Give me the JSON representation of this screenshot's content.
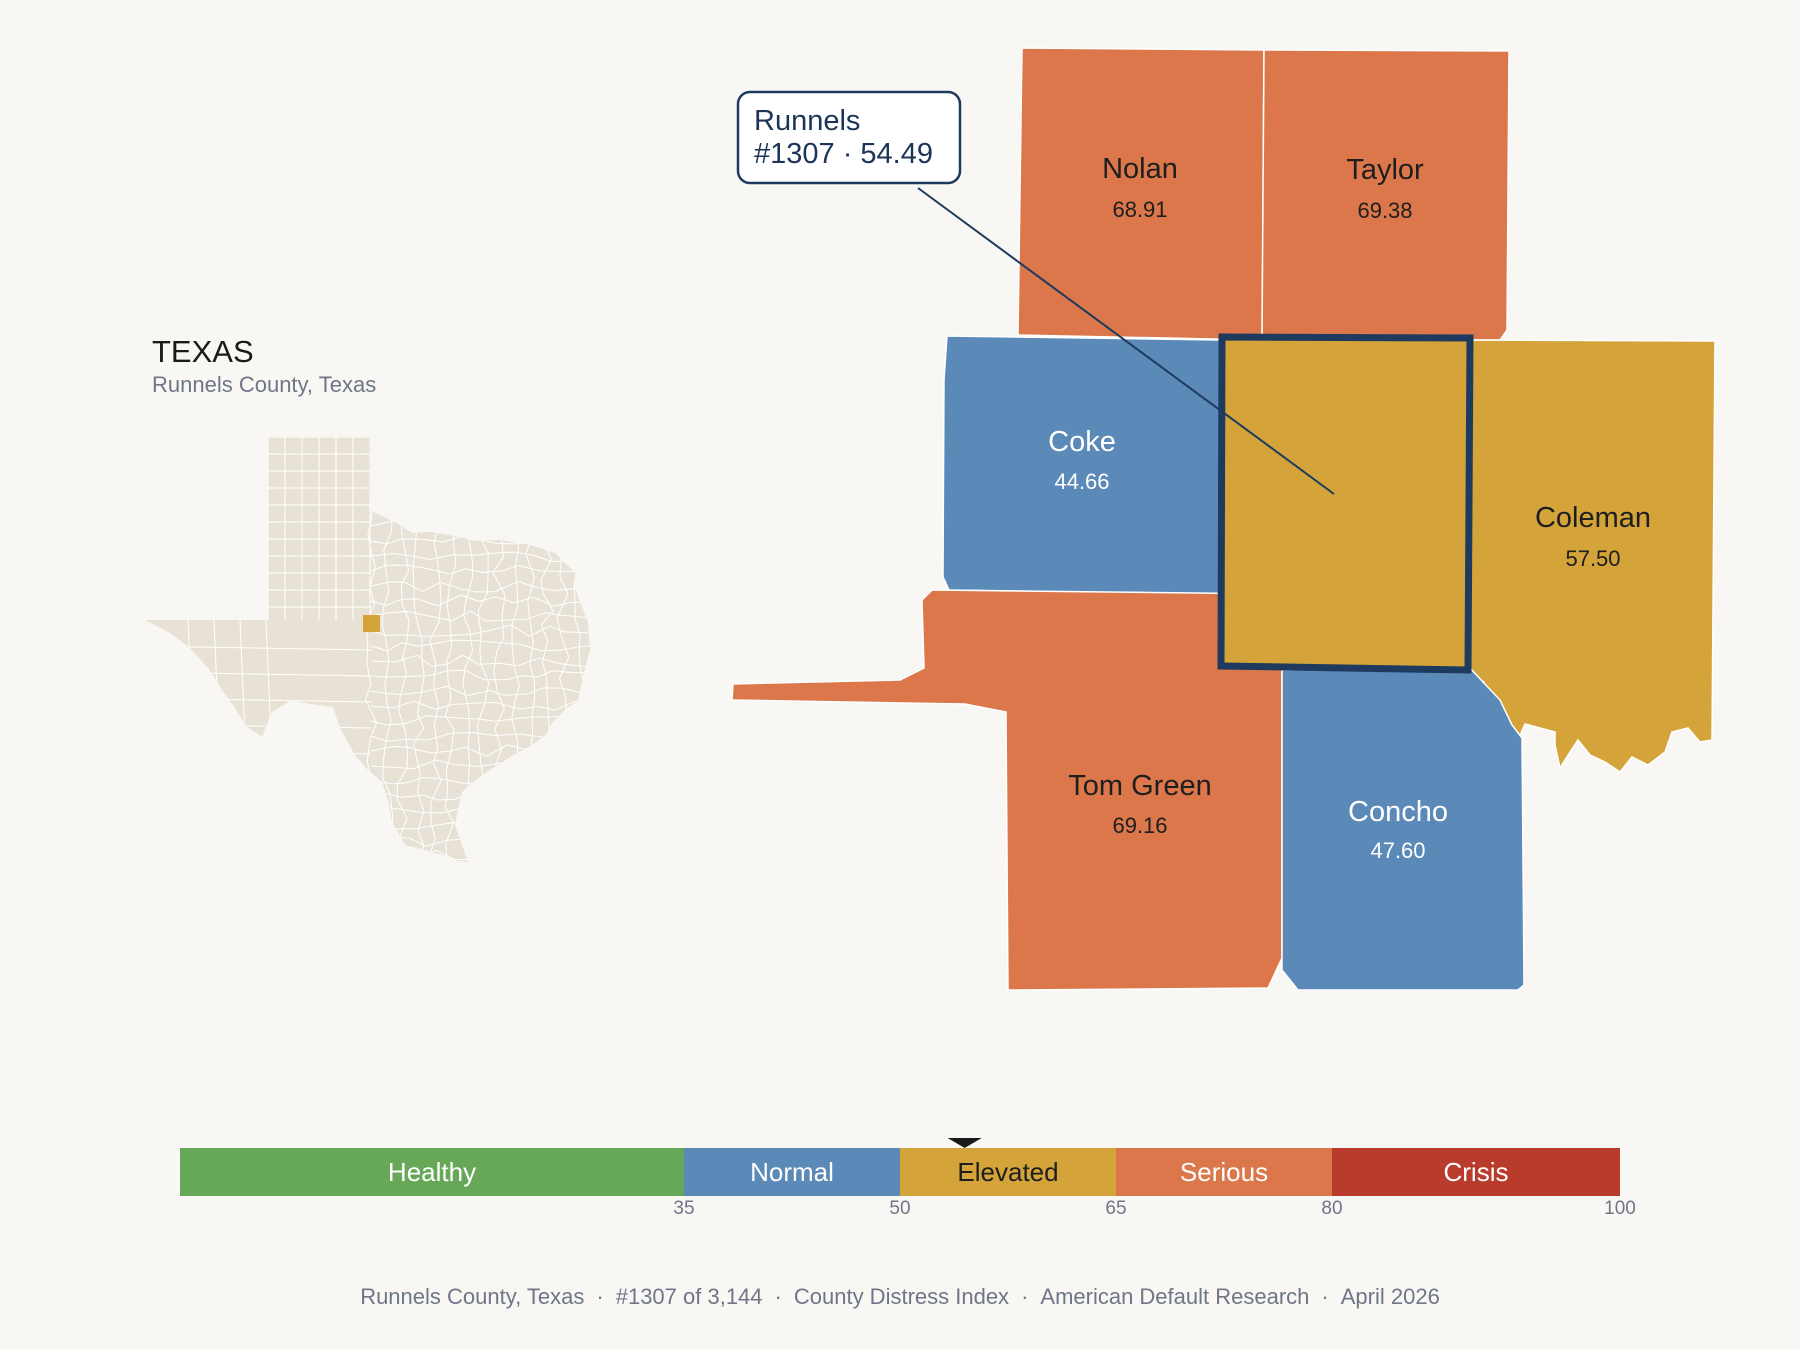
{
  "colors": {
    "healthy": "#66a758",
    "normal": "#5b89b8",
    "elevated": "#d4a43a",
    "serious": "#db774a",
    "crisis": "#b93b2c",
    "state_fill": "#e8e2d6",
    "highlight_outline": "#1e3a5f",
    "background": "#f9f7f4"
  },
  "inset": {
    "title": "TEXAS",
    "subtitle": "Runnels County, Texas"
  },
  "callout": {
    "line1": "Runnels",
    "line2": "#1307 · 54.49"
  },
  "counties": [
    {
      "name": "Nolan",
      "value": "68.91",
      "category": "serious"
    },
    {
      "name": "Taylor",
      "value": "69.38",
      "category": "serious"
    },
    {
      "name": "Coke",
      "value": "44.66",
      "category": "normal"
    },
    {
      "name": "Runnels",
      "value": "54.49",
      "category": "elevated",
      "highlighted": true
    },
    {
      "name": "Coleman",
      "value": "57.50",
      "category": "elevated"
    },
    {
      "name": "Tom Green",
      "value": "69.16",
      "category": "serious"
    },
    {
      "name": "Concho",
      "value": "47.60",
      "category": "normal"
    }
  ],
  "legend": {
    "bands": [
      {
        "label": "Healthy",
        "from": 0,
        "to": 35,
        "key": "healthy"
      },
      {
        "label": "Normal",
        "from": 35,
        "to": 50,
        "key": "normal"
      },
      {
        "label": "Elevated",
        "from": 50,
        "to": 65,
        "key": "elevated"
      },
      {
        "label": "Serious",
        "from": 65,
        "to": 80,
        "key": "serious"
      },
      {
        "label": "Crisis",
        "from": 80,
        "to": 100,
        "key": "crisis"
      }
    ],
    "ticks": [
      "35",
      "50",
      "65",
      "80",
      "100"
    ],
    "marker_value": 54.49
  },
  "footer": {
    "county": "Runnels County, Texas",
    "rank": "#1307 of 3,144",
    "index": "County Distress Index",
    "org": "American Default Research",
    "date": "April 2026"
  }
}
